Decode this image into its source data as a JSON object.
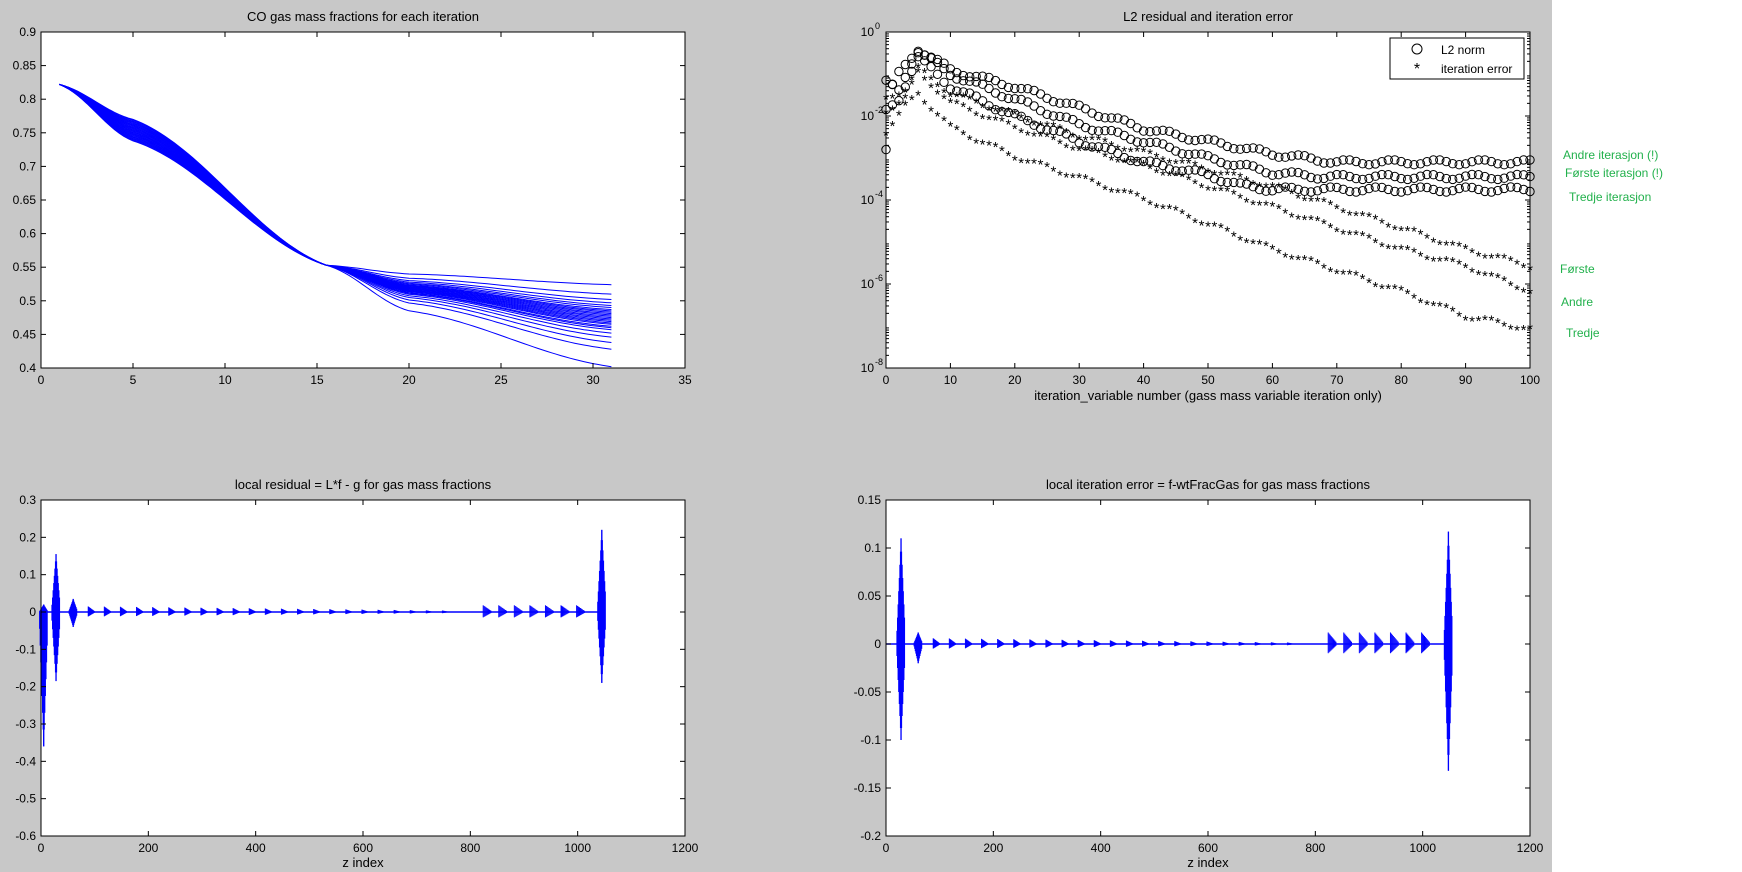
{
  "figure_background": "#c8c8c8",
  "axes_background": "#ffffff",
  "line_color": "#0000ff",
  "marker_color": "#000000",
  "note_color": "#22b14c",
  "chart_data": [
    {
      "type": "line",
      "title": "CO gas mass fractions for each iteration",
      "xlabel": "",
      "ylabel": "",
      "xlim": [
        0,
        35
      ],
      "ylim": [
        0.4,
        0.9
      ],
      "xticks": [
        "0",
        "5",
        "10",
        "15",
        "20",
        "25",
        "30",
        "35"
      ],
      "yticks": [
        "0.4",
        "0.45",
        "0.5",
        "0.55",
        "0.6",
        "0.65",
        "0.7",
        "0.75",
        "0.8",
        "0.85",
        "0.9"
      ],
      "x_range": [
        1,
        31
      ],
      "start_value": 0.822,
      "crossing": {
        "x": 15.5,
        "y": 0.553
      },
      "mid_range": {
        "x": 5,
        "y": [
          0.738,
          0.77
        ]
      },
      "end_values": [
        0.402,
        0.428,
        0.438,
        0.446,
        0.452,
        0.457,
        0.46,
        0.462,
        0.465,
        0.467,
        0.469,
        0.471,
        0.473,
        0.475,
        0.477,
        0.479,
        0.481,
        0.483,
        0.485,
        0.487,
        0.49,
        0.493,
        0.497,
        0.502,
        0.51,
        0.524
      ]
    },
    {
      "type": "scatter",
      "title": "L2 residual and iteration error",
      "xlabel": "iteration_variable number (gass mass variable iteration only)",
      "ylabel": "",
      "yscale": "log",
      "xlim": [
        0,
        100
      ],
      "ylim": [
        1e-08,
        1
      ],
      "xticks": [
        "0",
        "10",
        "20",
        "30",
        "40",
        "50",
        "60",
        "70",
        "80",
        "90",
        "100"
      ],
      "yticks": [
        {
          "base": "10",
          "exp": "0"
        },
        {
          "base": "10",
          "exp": "-2"
        },
        {
          "base": "10",
          "exp": "-4"
        },
        {
          "base": "10",
          "exp": "-6"
        },
        {
          "base": "10",
          "exp": "-8"
        }
      ],
      "legend": {
        "position": "top-right",
        "entries": [
          {
            "label": "L2 norm",
            "marker": "o"
          },
          {
            "label": "iteration error",
            "marker": "*"
          }
        ]
      },
      "series": [
        {
          "name": "L2 norm",
          "marker": "o",
          "log10_knots": [
            [
              0,
              -2.8
            ],
            [
              1,
              -1.3
            ],
            [
              2,
              -1.0
            ],
            [
              4,
              -0.6
            ],
            [
              5,
              -0.4
            ],
            [
              10,
              -0.9
            ],
            [
              20,
              -1.3
            ],
            [
              30,
              -1.8
            ],
            [
              40,
              -2.3
            ],
            [
              50,
              -2.6
            ],
            [
              60,
              -2.9
            ],
            [
              70,
              -3.1
            ],
            [
              80,
              -3.1
            ],
            [
              100,
              -3.1
            ]
          ]
        },
        {
          "name": "L2 norm",
          "marker": "o",
          "log10_knots": [
            [
              0,
              -1.2
            ],
            [
              2,
              -1.4
            ],
            [
              4,
              -0.7
            ],
            [
              5,
              -0.45
            ],
            [
              10,
              -1.0
            ],
            [
              20,
              -1.6
            ],
            [
              30,
              -2.2
            ],
            [
              40,
              -2.6
            ],
            [
              50,
              -3.0
            ],
            [
              60,
              -3.35
            ],
            [
              68,
              -3.45
            ],
            [
              100,
              -3.45
            ]
          ]
        },
        {
          "name": "L2 norm",
          "marker": "o",
          "log10_knots": [
            [
              0,
              -1.9
            ],
            [
              2,
              -1.6
            ],
            [
              4,
              -0.9
            ],
            [
              5,
              -0.6
            ],
            [
              10,
              -1.3
            ],
            [
              20,
              -2.0
            ],
            [
              30,
              -2.6
            ],
            [
              40,
              -3.1
            ],
            [
              50,
              -3.4
            ],
            [
              55,
              -3.65
            ],
            [
              60,
              -3.75
            ],
            [
              100,
              -3.75
            ]
          ]
        },
        {
          "name": "iteration error",
          "marker": "*",
          "log10_knots": [
            [
              0,
              -1.6
            ],
            [
              3,
              -1.4
            ],
            [
              5,
              -0.9
            ],
            [
              10,
              -1.5
            ],
            [
              20,
              -2.0
            ],
            [
              30,
              -2.5
            ],
            [
              40,
              -2.9
            ],
            [
              50,
              -3.3
            ],
            [
              60,
              -3.7
            ],
            [
              70,
              -4.2
            ],
            [
              80,
              -4.7
            ],
            [
              90,
              -5.2
            ],
            [
              100,
              -5.6
            ]
          ]
        },
        {
          "name": "iteration error",
          "marker": "*",
          "log10_knots": [
            [
              0,
              -1.9
            ],
            [
              3,
              -1.6
            ],
            [
              5,
              -1.0
            ],
            [
              10,
              -1.7
            ],
            [
              20,
              -2.3
            ],
            [
              30,
              -2.8
            ],
            [
              40,
              -3.2
            ],
            [
              50,
              -3.7
            ],
            [
              60,
              -4.2
            ],
            [
              70,
              -4.7
            ],
            [
              80,
              -5.2
            ],
            [
              90,
              -5.6
            ],
            [
              100,
              -6.2
            ]
          ]
        },
        {
          "name": "iteration error",
          "marker": "*",
          "log10_knots": [
            [
              0,
              -2.4
            ],
            [
              3,
              -1.8
            ],
            [
              5,
              -1.5
            ],
            [
              10,
              -2.3
            ],
            [
              20,
              -3.0
            ],
            [
              30,
              -3.5
            ],
            [
              40,
              -4.0
            ],
            [
              50,
              -4.6
            ],
            [
              60,
              -5.2
            ],
            [
              70,
              -5.7
            ],
            [
              80,
              -6.2
            ],
            [
              90,
              -6.8
            ],
            [
              100,
              -7.1
            ]
          ]
        }
      ]
    },
    {
      "type": "line",
      "title": "local residual = L*f - g for gas mass fractions",
      "xlabel": "z index",
      "ylabel": "",
      "xlim": [
        0,
        1200
      ],
      "ylim": [
        -0.6,
        0.3
      ],
      "xticks": [
        "0",
        "200",
        "400",
        "600",
        "800",
        "1000",
        "1200"
      ],
      "yticks": [
        "-0.6",
        "-0.5",
        "-0.4",
        "-0.3",
        "-0.2",
        "-0.1",
        "0",
        "0.1",
        "0.2",
        "0.3"
      ],
      "x_range": [
        1,
        1050
      ],
      "spikes": [
        {
          "x": 5,
          "max": 0.02,
          "min": -0.36
        },
        {
          "x": 28,
          "max": 0.155,
          "min": -0.185
        },
        {
          "x": 60,
          "max": 0.035,
          "min": -0.04
        },
        {
          "x": 1045,
          "max": 0.22,
          "min": -0.19
        }
      ],
      "bursts_left": {
        "x_start": 95,
        "x_end": 755,
        "spacing": 30,
        "amplitude": 0.015
      },
      "bursts_right": {
        "x_start": 833,
        "x_end": 1008,
        "spacing": 29,
        "amplitude": 0.018
      }
    },
    {
      "type": "line",
      "title": "local iteration error = f-wtFracGas for gas mass fractions",
      "xlabel": "z index",
      "ylabel": "",
      "xlim": [
        0,
        1200
      ],
      "ylim": [
        -0.2,
        0.15
      ],
      "xticks": [
        "0",
        "200",
        "400",
        "600",
        "800",
        "1000",
        "1200"
      ],
      "yticks": [
        "-0.2",
        "-0.15",
        "-0.1",
        "-0.05",
        "0",
        "0.05",
        "0.1",
        "0.15"
      ],
      "x_range": [
        1,
        1050
      ],
      "spikes": [
        {
          "x": 28,
          "max": 0.11,
          "min": -0.1
        },
        {
          "x": 60,
          "max": 0.012,
          "min": -0.02
        },
        {
          "x": 1048,
          "max": 0.117,
          "min": -0.132
        }
      ],
      "bursts_left": {
        "x_start": 95,
        "x_end": 755,
        "spacing": 30,
        "amplitude": 0.006
      },
      "bursts_right": {
        "x_start": 833,
        "x_end": 1008,
        "spacing": 29,
        "amplitude": 0.012
      }
    }
  ],
  "notes": {
    "andre_iterasjon_excl": "Andre iterasjon (!)",
    "forste_iterasjon_excl": "Første iterasjon (!)",
    "tredje_iterasjon": "Tredje iterasjon",
    "forste": "Første",
    "andre": "Andre",
    "tredje": "Tredje"
  }
}
